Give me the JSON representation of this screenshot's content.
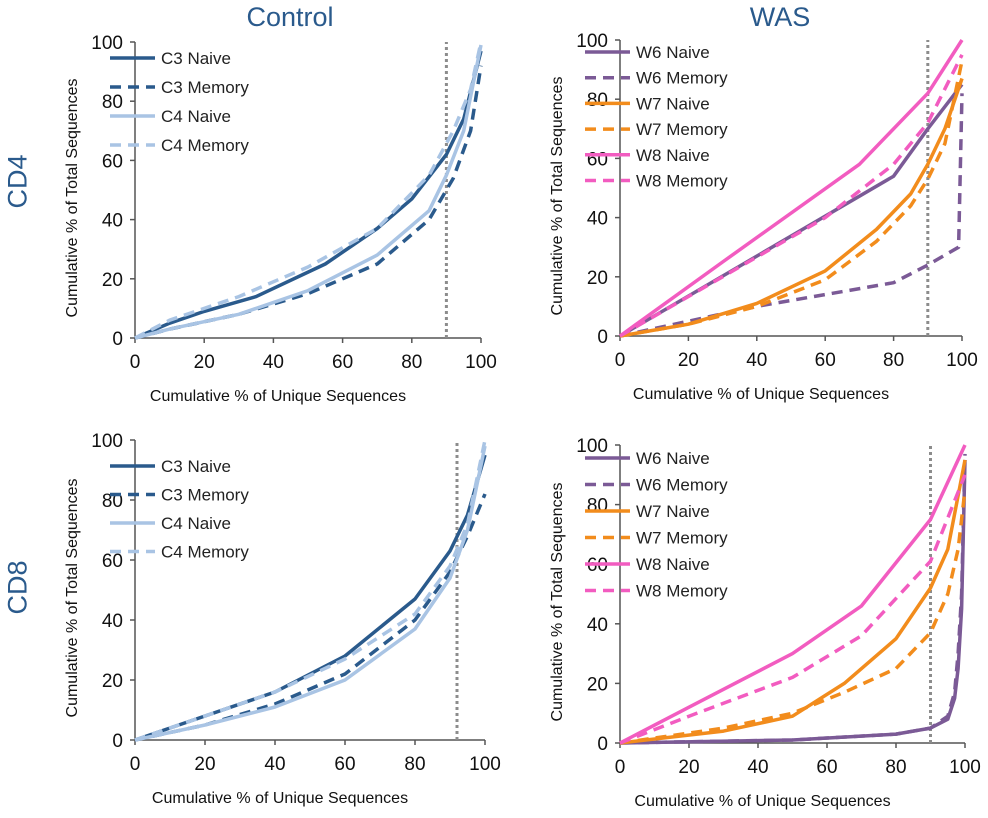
{
  "figure": {
    "col_titles": [
      "Control",
      "WAS"
    ],
    "row_titles": [
      "CD4",
      "CD8"
    ]
  },
  "colors": {
    "C3": "#2a5a8c",
    "C4": "#a9c4e4",
    "W6": "#7b5a96",
    "W7": "#f28c1c",
    "W8": "#f25cc0",
    "ref_line": "#8c8c8c",
    "axis": "#555555",
    "col_title": "#2a5a8c"
  },
  "chart_data": [
    {
      "id": "cd4-control",
      "type": "line",
      "xlabel": "Cumulative % of Unique Sequences",
      "ylabel": "Cumulative % of Total  Sequences",
      "xlim": [
        0,
        100
      ],
      "ylim": [
        0,
        100
      ],
      "xticks": [
        0,
        20,
        40,
        60,
        80,
        100
      ],
      "yticks": [
        0,
        20,
        40,
        60,
        80,
        100
      ],
      "reference_x": 90,
      "series": [
        {
          "name": "C3 Naive",
          "color_key": "C3",
          "dash": false,
          "x": [
            0,
            10,
            20,
            35,
            55,
            70,
            80,
            90,
            95,
            100
          ],
          "y": [
            0,
            5,
            9,
            14,
            25,
            37,
            47,
            62,
            74,
            97
          ]
        },
        {
          "name": "C3 Memory",
          "color_key": "C3",
          "dash": true,
          "x": [
            0,
            10,
            30,
            50,
            70,
            85,
            92,
            97,
            100
          ],
          "y": [
            0,
            3,
            8,
            15,
            25,
            40,
            54,
            70,
            92
          ]
        },
        {
          "name": "C4 Naive",
          "color_key": "C4",
          "dash": false,
          "x": [
            0,
            10,
            30,
            50,
            70,
            85,
            90,
            95,
            100
          ],
          "y": [
            0,
            3,
            8,
            16,
            28,
            43,
            55,
            70,
            99
          ]
        },
        {
          "name": "C4 Memory",
          "color_key": "C4",
          "dash": true,
          "x": [
            0,
            10,
            30,
            50,
            70,
            85,
            92,
            97,
            100
          ],
          "y": [
            0,
            6,
            14,
            24,
            37,
            55,
            70,
            84,
            100
          ]
        }
      ]
    },
    {
      "id": "cd4-was",
      "type": "line",
      "xlabel": "Cumulative % of Unique Sequences",
      "ylabel": "Cumulative % of Total  Sequences",
      "xlim": [
        0,
        100
      ],
      "ylim": [
        0,
        100
      ],
      "xticks": [
        0,
        20,
        40,
        60,
        80,
        100
      ],
      "yticks": [
        0,
        20,
        40,
        60,
        80,
        100
      ],
      "reference_x": 90,
      "series": [
        {
          "name": "W6 Naive",
          "color_key": "W6",
          "dash": false,
          "x": [
            0,
            40,
            80,
            90,
            100
          ],
          "y": [
            0,
            27,
            54,
            70,
            85
          ]
        },
        {
          "name": "W6 Memory",
          "color_key": "W6",
          "dash": true,
          "x": [
            0,
            40,
            80,
            90,
            99,
            100
          ],
          "y": [
            0,
            10,
            18,
            24,
            30,
            82
          ]
        },
        {
          "name": "W7 Naive",
          "color_key": "W7",
          "dash": false,
          "x": [
            0,
            20,
            40,
            60,
            75,
            85,
            90,
            95,
            100
          ],
          "y": [
            0,
            4,
            11,
            22,
            36,
            48,
            58,
            70,
            87
          ]
        },
        {
          "name": "W7 Memory",
          "color_key": "W7",
          "dash": true,
          "x": [
            0,
            20,
            40,
            60,
            75,
            85,
            90,
            95,
            100
          ],
          "y": [
            0,
            4,
            10,
            19,
            32,
            44,
            53,
            65,
            93
          ]
        },
        {
          "name": "W8 Naive",
          "color_key": "W8",
          "dash": false,
          "x": [
            0,
            30,
            70,
            90,
            100
          ],
          "y": [
            0,
            25,
            58,
            82,
            100
          ]
        },
        {
          "name": "W8 Memory",
          "color_key": "W8",
          "dash": true,
          "x": [
            0,
            30,
            60,
            80,
            90,
            100
          ],
          "y": [
            0,
            20,
            40,
            58,
            72,
            95
          ]
        }
      ]
    },
    {
      "id": "cd8-control",
      "type": "line",
      "xlabel": "Cumulative % of Unique Sequences",
      "ylabel": "Cumulative % of Total  Sequences",
      "xlim": [
        0,
        100
      ],
      "ylim": [
        0,
        100
      ],
      "xticks": [
        0,
        20,
        40,
        60,
        80,
        100
      ],
      "yticks": [
        0,
        20,
        40,
        60,
        80,
        100
      ],
      "reference_x": 92,
      "series": [
        {
          "name": "C3 Naive",
          "color_key": "C3",
          "dash": false,
          "x": [
            0,
            20,
            40,
            60,
            80,
            90,
            95,
            100
          ],
          "y": [
            0,
            8,
            16,
            28,
            47,
            63,
            75,
            95
          ]
        },
        {
          "name": "C3 Memory",
          "color_key": "C3",
          "dash": true,
          "x": [
            0,
            20,
            40,
            60,
            80,
            90,
            95,
            100
          ],
          "y": [
            0,
            5,
            12,
            22,
            40,
            56,
            68,
            82
          ]
        },
        {
          "name": "C4 Naive",
          "color_key": "C4",
          "dash": false,
          "x": [
            0,
            20,
            40,
            60,
            80,
            90,
            95,
            100
          ],
          "y": [
            0,
            5,
            11,
            20,
            37,
            54,
            70,
            98
          ]
        },
        {
          "name": "C4 Memory",
          "color_key": "C4",
          "dash": true,
          "x": [
            0,
            20,
            40,
            60,
            80,
            90,
            95,
            100
          ],
          "y": [
            0,
            8,
            16,
            27,
            42,
            58,
            72,
            100
          ]
        }
      ]
    },
    {
      "id": "cd8-was",
      "type": "line",
      "xlabel": "Cumulative % of Unique Sequences",
      "ylabel": "Cumulative % of Total  Sequences",
      "xlim": [
        0,
        100
      ],
      "ylim": [
        0,
        100
      ],
      "xticks": [
        0,
        20,
        40,
        60,
        80,
        100
      ],
      "yticks": [
        0,
        20,
        40,
        60,
        80,
        100
      ],
      "reference_x": 90,
      "series": [
        {
          "name": "W6 Naive",
          "color_key": "W6",
          "dash": false,
          "x": [
            0,
            50,
            80,
            90,
            95,
            97,
            98,
            99,
            100
          ],
          "y": [
            0,
            1,
            3,
            5,
            8,
            15,
            25,
            45,
            95
          ]
        },
        {
          "name": "W6 Memory",
          "color_key": "W6",
          "dash": true,
          "x": [
            0,
            50,
            80,
            90,
            95,
            97,
            98,
            99,
            100
          ],
          "y": [
            0,
            1,
            3,
            5,
            9,
            17,
            30,
            50,
            97
          ]
        },
        {
          "name": "W7 Naive",
          "color_key": "W7",
          "dash": false,
          "x": [
            0,
            30,
            50,
            65,
            80,
            90,
            95,
            100
          ],
          "y": [
            0,
            4,
            9,
            20,
            35,
            52,
            65,
            95
          ]
        },
        {
          "name": "W7 Memory",
          "color_key": "W7",
          "dash": true,
          "x": [
            0,
            30,
            50,
            65,
            80,
            90,
            95,
            98,
            100
          ],
          "y": [
            0,
            5,
            10,
            17,
            25,
            37,
            50,
            65,
            85
          ]
        },
        {
          "name": "W8 Naive",
          "color_key": "W8",
          "dash": false,
          "x": [
            0,
            20,
            50,
            70,
            90,
            100
          ],
          "y": [
            0,
            12,
            30,
            46,
            75,
            100
          ]
        },
        {
          "name": "W8 Memory",
          "color_key": "W8",
          "dash": true,
          "x": [
            0,
            20,
            50,
            70,
            90,
            100
          ],
          "y": [
            0,
            9,
            22,
            36,
            61,
            90
          ]
        }
      ]
    }
  ]
}
